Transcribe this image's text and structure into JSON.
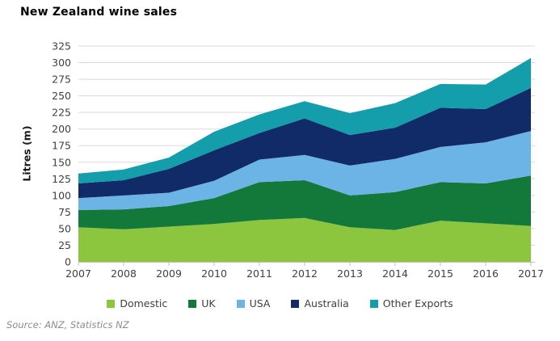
{
  "title": "New Zealand wine sales",
  "source": "Source: ANZ, Statistics NZ",
  "y_axis": {
    "label": "Litres (m)",
    "ticks": [
      0,
      25,
      50,
      75,
      100,
      125,
      150,
      175,
      200,
      225,
      250,
      275,
      300,
      325
    ]
  },
  "x_axis": {
    "labels": [
      "2007",
      "2008",
      "2009",
      "2010",
      "2011",
      "2012",
      "2013",
      "2014",
      "2015",
      "2016",
      "2017"
    ]
  },
  "colors": {
    "gridline": "#d9d9d9",
    "axis_line": "#bfbfbf",
    "tick_text": "#404040",
    "background": "#ffffff"
  },
  "chart_data": {
    "type": "area",
    "stacked": true,
    "title": "New Zealand wine sales",
    "xlabel": "",
    "ylabel": "Litres (m)",
    "ylim": [
      0,
      325
    ],
    "grid": true,
    "legend_position": "bottom",
    "x": [
      2007,
      2008,
      2009,
      2010,
      2011,
      2012,
      2013,
      2014,
      2015,
      2016,
      2017
    ],
    "series": [
      {
        "name": "Domestic",
        "color": "#8CC63E",
        "values": [
          52,
          49,
          53,
          57,
          63,
          66,
          52,
          48,
          62,
          58,
          54
        ]
      },
      {
        "name": "UK",
        "color": "#13793B",
        "values": [
          26,
          30,
          31,
          39,
          57,
          57,
          48,
          57,
          58,
          60,
          76
        ]
      },
      {
        "name": "USA",
        "color": "#6CB4E6",
        "values": [
          18,
          21,
          20,
          26,
          34,
          38,
          45,
          50,
          53,
          62,
          67
        ]
      },
      {
        "name": "Australia",
        "color": "#112A68",
        "values": [
          22,
          23,
          36,
          46,
          40,
          55,
          46,
          47,
          59,
          50,
          65
        ]
      },
      {
        "name": "Other Exports",
        "color": "#149DAB",
        "values": [
          15,
          16,
          17,
          28,
          28,
          26,
          33,
          37,
          36,
          37,
          45
        ]
      }
    ],
    "cumulative_totals": [
      133,
      139,
      157,
      196,
      222,
      242,
      224,
      239,
      268,
      267,
      307
    ]
  }
}
